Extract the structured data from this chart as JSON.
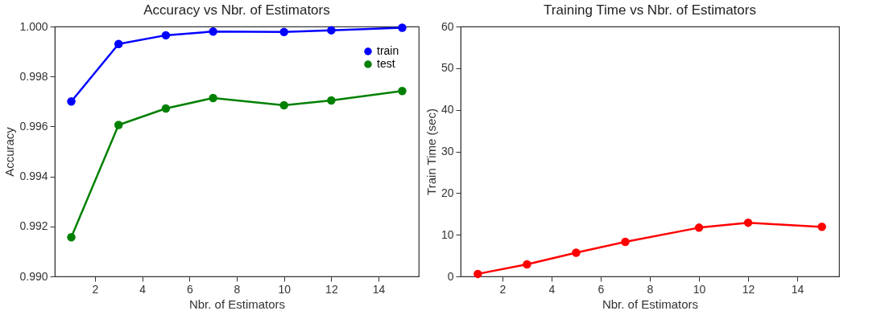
{
  "chart_data": [
    {
      "type": "line",
      "title": "Accuracy vs Nbr. of Estimators",
      "xlabel": "Nbr. of Estimators",
      "ylabel": "Accuracy",
      "x": [
        1,
        3,
        5,
        7,
        10,
        12,
        15
      ],
      "series": [
        {
          "name": "train",
          "color": "#0000ff",
          "values": [
            0.997,
            0.9993,
            0.99965,
            0.9998,
            0.99978,
            0.99985,
            0.99995
          ]
        },
        {
          "name": "test",
          "color": "#008000",
          "values": [
            0.99157,
            0.99606,
            0.99672,
            0.99714,
            0.99685,
            0.99704,
            0.99742
          ]
        }
      ],
      "xlim": [
        0.3,
        15.7
      ],
      "xticks": [
        2,
        4,
        6,
        8,
        10,
        12,
        14
      ],
      "ylim": [
        0.99,
        1.0
      ],
      "yticks": [
        {
          "value": 0.99,
          "label": "0.990"
        },
        {
          "value": 0.992,
          "label": "0.992"
        },
        {
          "value": 0.994,
          "label": "0.994"
        },
        {
          "value": 0.996,
          "label": "0.996"
        },
        {
          "value": 0.998,
          "label": "0.998"
        },
        {
          "value": 1.0,
          "label": "1.000"
        }
      ],
      "grid": false,
      "legend": "top right",
      "marker": "circle",
      "line_style": "solid"
    },
    {
      "type": "line",
      "title": "Training Time vs Nbr. of Estimators",
      "xlabel": "Nbr. of Estimators",
      "ylabel": "Train Time (sec)",
      "x": [
        1,
        3,
        5,
        7,
        10,
        12,
        15
      ],
      "series": [
        {
          "color": "#ff0000",
          "values": [
            0.6,
            2.9,
            5.7,
            8.3,
            11.7,
            12.9,
            11.9
          ]
        }
      ],
      "xlim": [
        0.3,
        15.7
      ],
      "xticks": [
        2,
        4,
        6,
        8,
        10,
        12,
        14
      ],
      "ylim": [
        0,
        60
      ],
      "yticks": [
        0,
        10,
        20,
        30,
        40,
        50,
        60
      ],
      "grid": false,
      "legend": false,
      "marker": "circle",
      "line_style": "solid"
    }
  ]
}
